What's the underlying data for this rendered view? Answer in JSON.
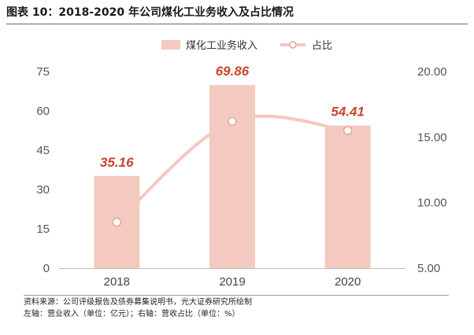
{
  "header": {
    "title": "图表 10：2018-2020 年公司煤化工业务收入及占比情况"
  },
  "footer": {
    "source": "资料来源：公司评级报告及债券募集说明书，光大证券研究所绘制",
    "units_note": "左轴：营业收入（单位：亿元）；右轴：营收占比（单位：%）"
  },
  "colors": {
    "bar": "#f3c9c0",
    "line": "#f3c9c0",
    "marker_fill": "#ffffff",
    "marker_stroke": "#e8a597",
    "data_label": "#c8452f",
    "axis_text": "#555555"
  },
  "chart_data": {
    "type": "bar",
    "categories": [
      "2018",
      "2019",
      "2020"
    ],
    "series": [
      {
        "name": "煤化工业务收入",
        "type": "bar",
        "axis": "left",
        "values": [
          35.16,
          69.86,
          54.41
        ],
        "data_labels": [
          "35.16",
          "69.86",
          "54.41"
        ]
      },
      {
        "name": "占比",
        "type": "line",
        "axis": "right",
        "smooth": true,
        "values": [
          8.5,
          16.2,
          15.5
        ]
      }
    ],
    "left_axis": {
      "min": 0,
      "max": 75,
      "ticks": [
        "0",
        "15",
        "30",
        "45",
        "60",
        "75"
      ]
    },
    "right_axis": {
      "min": 5,
      "max": 20,
      "ticks": [
        "5.00",
        "10.00",
        "15.00",
        "20.00"
      ]
    },
    "legend": {
      "position": "top-right",
      "items": [
        "煤化工业务收入",
        "占比"
      ]
    },
    "grid": false
  }
}
